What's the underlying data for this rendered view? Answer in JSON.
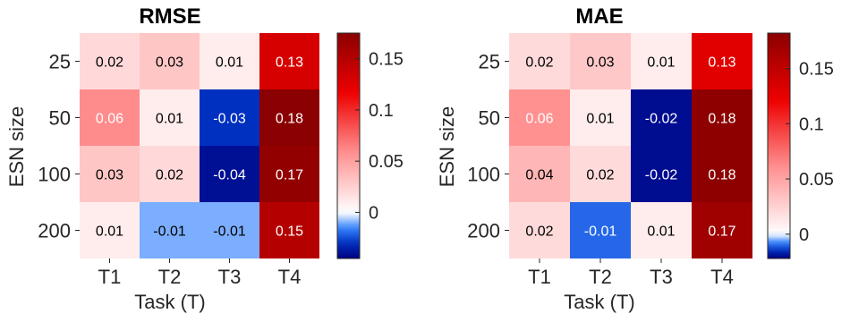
{
  "chart_data": [
    {
      "type": "heatmap",
      "title": "RMSE",
      "xlabel": "Task (T)",
      "ylabel": "ESN size",
      "x_categories": [
        "T1",
        "T2",
        "T3",
        "T4"
      ],
      "y_categories": [
        "25",
        "50",
        "100",
        "200"
      ],
      "values": [
        [
          0.02,
          0.03,
          0.01,
          0.13
        ],
        [
          0.06,
          0.01,
          -0.03,
          0.18
        ],
        [
          0.03,
          0.02,
          -0.04,
          0.17
        ],
        [
          0.01,
          -0.01,
          -0.01,
          0.15
        ]
      ],
      "value_labels": [
        [
          "0.02",
          "0.03",
          "0.01",
          "0.13"
        ],
        [
          "0.06",
          "0.01",
          "-0.03",
          "0.18"
        ],
        [
          "0.03",
          "0.02",
          "-0.04",
          "0.17"
        ],
        [
          "0.01",
          "-0.01",
          "-0.01",
          "0.15"
        ]
      ],
      "color_range": [
        -0.045,
        0.175
      ],
      "colorbar_ticks": [
        0,
        0.05,
        0.1,
        0.15
      ],
      "colorbar_tick_labels": [
        "0",
        "0.05",
        "0.1",
        "0.15"
      ]
    },
    {
      "type": "heatmap",
      "title": "MAE",
      "xlabel": "Task (T)",
      "ylabel": "ESN size",
      "x_categories": [
        "T1",
        "T2",
        "T3",
        "T4"
      ],
      "y_categories": [
        "25",
        "50",
        "100",
        "200"
      ],
      "values": [
        [
          0.02,
          0.03,
          0.01,
          0.13
        ],
        [
          0.06,
          0.01,
          -0.02,
          0.18
        ],
        [
          0.04,
          0.02,
          -0.02,
          0.18
        ],
        [
          0.02,
          -0.01,
          0.01,
          0.17
        ]
      ],
      "value_labels": [
        [
          "0.02",
          "0.03",
          "0.01",
          "0.13"
        ],
        [
          "0.06",
          "0.01",
          "-0.02",
          "0.18"
        ],
        [
          "0.04",
          "0.02",
          "-0.02",
          "0.18"
        ],
        [
          "0.02",
          "-0.01",
          "0.01",
          "0.17"
        ]
      ],
      "color_range": [
        -0.022,
        0.182
      ],
      "colorbar_ticks": [
        0,
        0.05,
        0.1,
        0.15
      ],
      "colorbar_tick_labels": [
        "0",
        "0.05",
        "0.1",
        "0.15"
      ]
    }
  ],
  "colors": {
    "colormap": [
      "#000080",
      "#0030c0",
      "#3a86ff",
      "#ffffff",
      "#ff9090",
      "#ee0000",
      "#8b0000"
    ],
    "label_light": "#ffffff",
    "label_dark": "#000000"
  }
}
